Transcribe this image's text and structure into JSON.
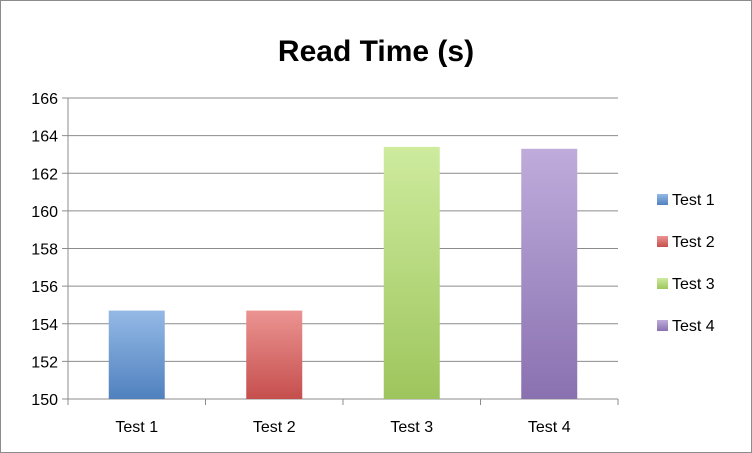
{
  "chart_data": {
    "type": "bar",
    "title": "Read Time (s)",
    "xlabel": "",
    "ylabel": "",
    "categories": [
      "Test 1",
      "Test 2",
      "Test 3",
      "Test 4"
    ],
    "series": [
      {
        "name": "Test 1",
        "values": [
          154.7,
          null,
          null,
          null
        ],
        "color": "#5b93d8"
      },
      {
        "name": "Test 2",
        "values": [
          null,
          154.7,
          null,
          null
        ],
        "color": "#e05a58"
      },
      {
        "name": "Test 3",
        "values": [
          null,
          null,
          163.4,
          null
        ],
        "color": "#b4e06a"
      },
      {
        "name": "Test 4",
        "values": [
          null,
          null,
          null,
          163.3
        ],
        "color": "#9c80c8"
      }
    ],
    "ylim": [
      150,
      166
    ],
    "yticks": [
      150,
      152,
      154,
      156,
      158,
      160,
      162,
      164,
      166
    ],
    "ytick_labels": [
      "150",
      "152",
      "154",
      "156",
      "158",
      "160",
      "162",
      "164",
      "166"
    ],
    "grid": true,
    "legend_position": "right",
    "legend": [
      "Test 1",
      "Test 2",
      "Test 3",
      "Test 4"
    ]
  }
}
